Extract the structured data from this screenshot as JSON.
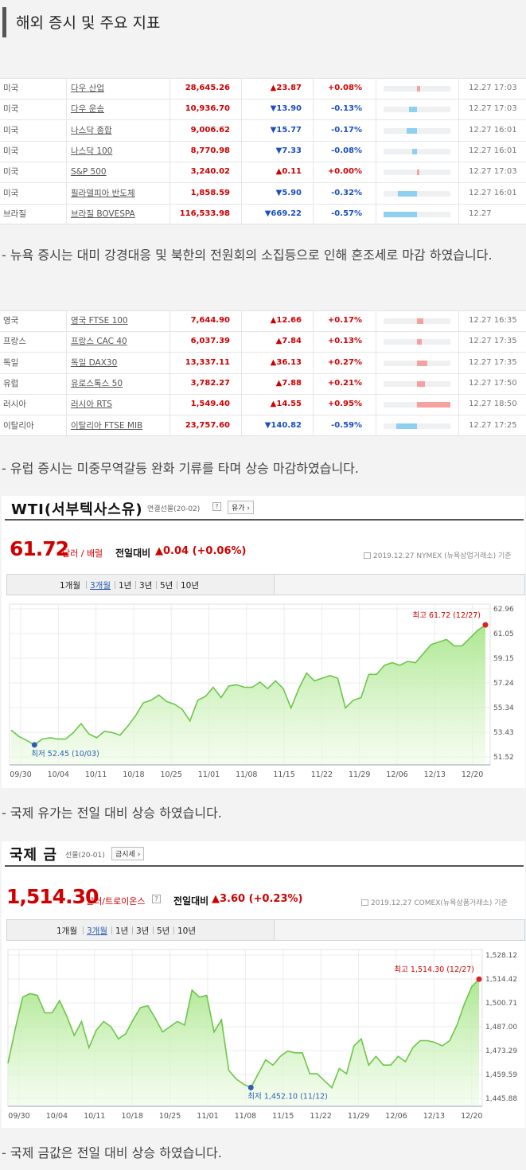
{
  "header": {
    "title": "해외 증시 및 주요 지표"
  },
  "us_table": {
    "rows": [
      {
        "country": "미국",
        "name": "다우 산업",
        "value": "28,645.26",
        "dir": "up",
        "change": "▲23.87",
        "pct": "+0.08%",
        "bar_from": 0.5,
        "bar_to": 0.55,
        "time": "12.27 17:03"
      },
      {
        "country": "미국",
        "name": "다우 운송",
        "value": "10,936.70",
        "dir": "down",
        "change": "▼13.90",
        "pct": "-0.13%",
        "bar_from": 0.38,
        "bar_to": 0.5,
        "time": "12.27 17:03"
      },
      {
        "country": "미국",
        "name": "나스닥 종합",
        "value": "9,006.62",
        "dir": "down",
        "change": "▼15.77",
        "pct": "-0.17%",
        "bar_from": 0.35,
        "bar_to": 0.5,
        "time": "12.27 16:01"
      },
      {
        "country": "미국",
        "name": "나스닥 100",
        "value": "8,770.98",
        "dir": "down",
        "change": "▼7.33",
        "pct": "-0.08%",
        "bar_from": 0.43,
        "bar_to": 0.5,
        "time": "12.27 16:01"
      },
      {
        "country": "미국",
        "name": "S&P 500",
        "value": "3,240.02",
        "dir": "up",
        "change": "▲0.11",
        "pct": "+0.00%",
        "bar_from": 0.5,
        "bar_to": 0.5,
        "time": "12.27 17:03"
      },
      {
        "country": "미국",
        "name": "필라델피아 반도체",
        "value": "1,858.59",
        "dir": "down",
        "change": "▼5.90",
        "pct": "-0.32%",
        "bar_from": 0.22,
        "bar_to": 0.5,
        "time": "12.27 16:01"
      },
      {
        "country": "브라질",
        "name": "브라질 BOVESPA",
        "value": "116,533.98",
        "dir": "down",
        "change": "▼669.22",
        "pct": "-0.57%",
        "bar_from": 0.0,
        "bar_to": 0.5,
        "time": "12.27"
      }
    ]
  },
  "note1": "- 뉴욕 증시는 대미 강경대응 및 북한의 전원회의 소집등으로 인해 혼조세로 마감 하였습니다.",
  "eu_table": {
    "rows": [
      {
        "country": "영국",
        "name": "영국 FTSE 100",
        "value": "7,644.90",
        "dir": "up",
        "change": "▲12.66",
        "pct": "+0.17%",
        "bar_from": 0.5,
        "bar_to": 0.6,
        "time": "12.27 16:35"
      },
      {
        "country": "프랑스",
        "name": "프랑스 CAC 40",
        "value": "6,037.39",
        "dir": "up",
        "change": "▲7.84",
        "pct": "+0.13%",
        "bar_from": 0.5,
        "bar_to": 0.57,
        "time": "12.27 17:35"
      },
      {
        "country": "독일",
        "name": "독일 DAX30",
        "value": "13,337.11",
        "dir": "up",
        "change": "▲36.13",
        "pct": "+0.27%",
        "bar_from": 0.5,
        "bar_to": 0.65,
        "time": "12.27 17:35"
      },
      {
        "country": "유럽",
        "name": "유로스톡스 50",
        "value": "3,782.27",
        "dir": "up",
        "change": "▲7.88",
        "pct": "+0.21%",
        "bar_from": 0.5,
        "bar_to": 0.62,
        "time": "12.27 17:50"
      },
      {
        "country": "러시아",
        "name": "러시아 RTS",
        "value": "1,549.40",
        "dir": "up",
        "change": "▲14.55",
        "pct": "+0.95%",
        "bar_from": 0.5,
        "bar_to": 1.0,
        "time": "12.27 18:50"
      },
      {
        "country": "이탈리아",
        "name": "이탈리아 FTSE MIB",
        "value": "23,757.60",
        "dir": "down",
        "change": "▼140.82",
        "pct": "-0.59%",
        "bar_from": 0.19,
        "bar_to": 0.5,
        "time": "12.27 17:25"
      }
    ]
  },
  "note2": "- 유럽 증시는 미중무역갈등 완화 기류를 타며 상승 마감하였습니다.",
  "wti": {
    "title": "WTI(서부텍사스유)",
    "sub": "연결선물(20-02)",
    "tag": "유가",
    "price": "61.72",
    "unit": "달러 / 배럴",
    "cmp_label": "전일대비",
    "cmp_val": "▲0.04 (+0.06%)",
    "source": "2019.12.27 NYMEX (뉴욕상업거래소) 기준",
    "ranges": [
      "1개월",
      "3개월",
      "1년",
      "3년",
      "5년",
      "10년"
    ],
    "active_range": 1
  },
  "note3": "- 국제 유가는 전일 대비 상승 하였습니다.",
  "gold": {
    "title": "국제 금",
    "sub": "선물(20-01)",
    "tag": "금시세",
    "price": "1,514.30",
    "unit": "달러/트로이온스",
    "cmp_label": "전일대비",
    "cmp_val": "▲3.60 (+0.23%)",
    "source": "2019.12.27 COMEX(뉴욕상품거래소) 기준",
    "ranges": [
      "1개월",
      "3개월",
      "1년",
      "3년",
      "5년",
      "10년"
    ],
    "active_range": 1
  },
  "note4": "- 국제 금값은 전일 대비 상승 하였습니다.",
  "chart_data": [
    {
      "type": "area",
      "x_labels": [
        "09/30",
        "10/04",
        "10/11",
        "10/18",
        "10/25",
        "11/01",
        "11/08",
        "11/15",
        "11/22",
        "11/29",
        "12/06",
        "12/13",
        "12/20"
      ],
      "y_ticks": [
        "62.96",
        "61.05",
        "59.15",
        "57.24",
        "55.34",
        "53.43",
        "51.52"
      ],
      "ylim": [
        51.52,
        62.96
      ],
      "values": [
        53.6,
        53.1,
        52.8,
        52.45,
        52.9,
        53.0,
        52.9,
        52.9,
        53.4,
        54.1,
        53.3,
        53.0,
        53.5,
        53.4,
        53.2,
        53.9,
        54.7,
        55.7,
        55.9,
        56.3,
        55.8,
        55.6,
        55.2,
        54.3,
        55.9,
        56.2,
        56.9,
        56.1,
        57.0,
        57.1,
        56.9,
        56.9,
        57.3,
        56.8,
        57.4,
        56.8,
        55.3,
        56.8,
        58.0,
        57.4,
        57.6,
        57.8,
        57.6,
        55.3,
        55.9,
        56.1,
        57.9,
        57.9,
        58.6,
        58.8,
        58.6,
        58.9,
        58.8,
        59.5,
        60.2,
        60.4,
        60.6,
        60.1,
        60.1,
        60.7,
        61.3,
        61.72
      ],
      "annotations": [
        {
          "text": "최저 52.45 (10/03)",
          "kind": "min",
          "index": 3
        },
        {
          "text": "최고 61.72 (12/27)",
          "kind": "max",
          "index": 61
        }
      ]
    },
    {
      "type": "area",
      "x_labels": [
        "09/30",
        "10/04",
        "10/11",
        "10/18",
        "10/25",
        "11/01",
        "11/08",
        "11/15",
        "11/22",
        "11/29",
        "12/06",
        "12/13",
        "12/20"
      ],
      "y_ticks": [
        "1,528.12",
        "1,514.42",
        "1,500.71",
        "1,487.00",
        "1,473.29",
        "1,459.59",
        "1,445.88"
      ],
      "ylim": [
        1445.88,
        1528.12
      ],
      "values": [
        1466,
        1486,
        1504,
        1506,
        1505,
        1495,
        1495,
        1502,
        1493,
        1482,
        1490,
        1475,
        1485,
        1490,
        1487,
        1480,
        1483,
        1491,
        1498,
        1499,
        1492,
        1484,
        1487,
        1490,
        1488,
        1508,
        1504,
        1505,
        1484,
        1491,
        1462,
        1457,
        1454,
        1452.1,
        1460,
        1468,
        1465,
        1470,
        1473,
        1472,
        1472,
        1460,
        1460,
        1456,
        1452,
        1463,
        1460,
        1476,
        1480,
        1465,
        1470,
        1465,
        1465,
        1470,
        1467,
        1475,
        1479,
        1479,
        1478,
        1476,
        1479,
        1488,
        1500,
        1510,
        1514.3
      ],
      "annotations": [
        {
          "text": "최저 1,452.10 (11/12)",
          "kind": "min",
          "index": 33
        },
        {
          "text": "최고 1,514.30 (12/27)",
          "kind": "max",
          "index": 64
        }
      ]
    }
  ]
}
